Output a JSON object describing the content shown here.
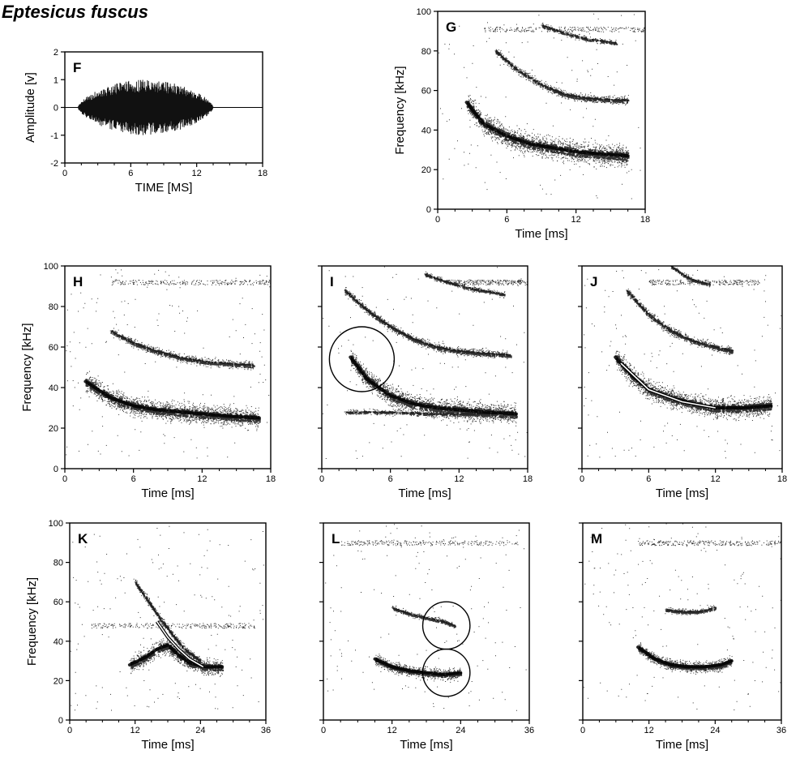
{
  "figure": {
    "title": "Eptesicus fuscus"
  },
  "panels": [
    {
      "id": "F",
      "label": "F",
      "kind": "waveform",
      "xlabel": "TIME [MS]",
      "ylabel": "Amplitude [v]",
      "x_ticks": [
        "0",
        "6",
        "12",
        "18"
      ],
      "y_ticks": [
        "2",
        "1",
        "0",
        "-1",
        "-2"
      ],
      "xlim": [
        0,
        18
      ],
      "ylim": [
        -2,
        2
      ],
      "envelope": {
        "start": 1.2,
        "end": 13.5,
        "peak_amplitude": 1.0
      }
    },
    {
      "id": "G",
      "label": "G",
      "kind": "spectrogram",
      "xlabel": "Time [ms]",
      "ylabel": "Frequency [kHz]",
      "x_ticks": [
        "0",
        "6",
        "12",
        "18"
      ],
      "y_ticks": [
        "100",
        "80",
        "60",
        "40",
        "20",
        "0"
      ],
      "xlim": [
        0,
        18
      ],
      "ylim": [
        0,
        100
      ],
      "traces": [
        {
          "name": "fundamental",
          "x": [
            2.5,
            4,
            6,
            8,
            10,
            12,
            14,
            16.5
          ],
          "y": [
            54,
            43,
            37,
            33,
            31,
            29,
            28,
            27
          ],
          "spread": 8,
          "density": 0.9
        },
        {
          "name": "harmonic2",
          "x": [
            5,
            7,
            9,
            11,
            13,
            16.5
          ],
          "y": [
            80,
            70,
            63,
            58,
            56,
            55
          ],
          "spread": 3,
          "density": 0.45
        },
        {
          "name": "harmonic3",
          "x": [
            9,
            11,
            13,
            15.5
          ],
          "y": [
            93,
            89,
            86,
            84
          ],
          "spread": 2,
          "density": 0.3
        }
      ],
      "noise_band": {
        "y": 91,
        "x_range": [
          4,
          18
        ]
      },
      "circles": []
    },
    {
      "id": "H",
      "label": "H",
      "kind": "spectrogram",
      "xlabel": "Time [ms]",
      "ylabel": "Frequency [kHz]",
      "x_ticks": [
        "0",
        "6",
        "12",
        "18"
      ],
      "y_ticks": [
        "100",
        "80",
        "60",
        "40",
        "20",
        "0"
      ],
      "xlim": [
        0,
        18
      ],
      "ylim": [
        0,
        100
      ],
      "traces": [
        {
          "name": "fundamental",
          "x": [
            1.8,
            4,
            6,
            8,
            10,
            12,
            14,
            17
          ],
          "y": [
            43,
            35,
            31,
            29,
            28,
            27,
            26,
            25
          ],
          "spread": 7,
          "density": 0.9
        },
        {
          "name": "harmonic2",
          "x": [
            4,
            6,
            8,
            10,
            12,
            14,
            16.5
          ],
          "y": [
            68,
            62,
            58,
            55,
            53,
            52,
            51
          ],
          "spread": 3,
          "density": 0.45
        }
      ],
      "noise_band": {
        "y": 92,
        "x_range": [
          4,
          18
        ]
      },
      "circles": []
    },
    {
      "id": "I",
      "label": "I",
      "kind": "spectrogram",
      "xlabel": "Time [ms]",
      "ylabel": "",
      "x_ticks": [
        "0",
        "6",
        "12",
        "18"
      ],
      "y_ticks": [],
      "xlim": [
        0,
        18
      ],
      "ylim": [
        0,
        100
      ],
      "traces": [
        {
          "name": "fundamental",
          "x": [
            2.5,
            4,
            6,
            8,
            10,
            12,
            14,
            17
          ],
          "y": [
            55,
            44,
            36,
            32,
            30,
            29,
            28,
            27
          ],
          "spread": 7,
          "density": 0.9
        },
        {
          "name": "harmonic2",
          "x": [
            2,
            4,
            6,
            8,
            10,
            12,
            14,
            16.5
          ],
          "y": [
            88,
            78,
            70,
            64,
            60,
            58,
            57,
            56
          ],
          "spread": 3,
          "density": 0.5
        },
        {
          "name": "harmonic3",
          "x": [
            9,
            11,
            13,
            16
          ],
          "y": [
            96,
            92,
            89,
            86
          ],
          "spread": 2,
          "density": 0.3
        },
        {
          "name": "echo_band",
          "x": [
            2,
            6,
            10,
            15
          ],
          "y": [
            28,
            28,
            27,
            27
          ],
          "spread": 2,
          "density": 0.25
        }
      ],
      "noise_band": {
        "y": 92,
        "x_range": [
          11,
          18
        ]
      },
      "circles": [
        {
          "cx": 3.5,
          "cy": 54,
          "r_kHz": 16
        }
      ]
    },
    {
      "id": "J",
      "label": "J",
      "kind": "spectrogram",
      "xlabel": "Time [ms]",
      "ylabel": "",
      "x_ticks": [
        "0",
        "6",
        "12",
        "18"
      ],
      "y_ticks": [],
      "xlim": [
        0,
        18
      ],
      "ylim": [
        0,
        100
      ],
      "traces": [
        {
          "name": "fundamental",
          "x": [
            3,
            4.5,
            6,
            8,
            10,
            12,
            14.5,
            17
          ],
          "y": [
            55,
            46,
            39,
            35,
            32,
            30,
            30,
            31
          ],
          "spread": 7,
          "density": 0.9
        },
        {
          "name": "harmonic2",
          "x": [
            4,
            6,
            8,
            10,
            12,
            13.5
          ],
          "y": [
            88,
            76,
            68,
            63,
            60,
            58
          ],
          "spread": 3,
          "density": 0.5
        },
        {
          "name": "harmonic3",
          "x": [
            8,
            9,
            10,
            11.5
          ],
          "y": [
            100,
            96,
            93,
            91
          ],
          "spread": 2,
          "density": 0.35
        }
      ],
      "noise_band": {
        "y": 92,
        "x_range": [
          6,
          16
        ]
      },
      "circles": [],
      "overlay_line": {
        "x": [
          3.5,
          6,
          9,
          12
        ],
        "y": [
          52,
          39,
          33,
          30
        ]
      }
    },
    {
      "id": "K",
      "label": "K",
      "kind": "spectrogram",
      "xlabel": "Time [ms]",
      "ylabel": "Frequency [kHz]",
      "x_ticks": [
        "0",
        "12",
        "24",
        "36"
      ],
      "y_ticks": [
        "100",
        "80",
        "60",
        "40",
        "20",
        "0"
      ],
      "xlim": [
        0,
        36
      ],
      "ylim": [
        0,
        100
      ],
      "traces": [
        {
          "name": "fundamental",
          "x": [
            11,
            14,
            16,
            18,
            20,
            22,
            25,
            28
          ],
          "y": [
            28,
            32,
            36,
            38,
            33,
            29,
            27,
            27
          ],
          "spread": 6,
          "density": 0.8
        },
        {
          "name": "downsweep",
          "x": [
            12,
            15,
            17,
            19,
            21,
            24
          ],
          "y": [
            70,
            58,
            50,
            43,
            36,
            30
          ],
          "spread": 3,
          "density": 0.5
        }
      ],
      "noise_band": {
        "y": 48,
        "x_range": [
          4,
          34
        ]
      },
      "circles": [],
      "overlay_line": {
        "x": [
          16,
          18,
          20,
          22,
          24.5
        ],
        "y": [
          50,
          42,
          36,
          31,
          27
        ]
      }
    },
    {
      "id": "L",
      "label": "L",
      "kind": "spectrogram",
      "xlabel": "Time [ms]",
      "ylabel": "",
      "x_ticks": [
        "0",
        "12",
        "24",
        "36"
      ],
      "y_ticks": [],
      "xlim": [
        0,
        36
      ],
      "ylim": [
        0,
        100
      ],
      "traces": [
        {
          "name": "fundamental",
          "x": [
            9,
            12,
            15,
            18,
            21,
            24
          ],
          "y": [
            31,
            27,
            25,
            24,
            23,
            24
          ],
          "spread": 4,
          "density": 0.8
        },
        {
          "name": "harmonic2",
          "x": [
            12,
            15,
            18,
            21,
            23
          ],
          "y": [
            57,
            54,
            52,
            50,
            48
          ],
          "spread": 2,
          "density": 0.4
        }
      ],
      "noise_band": {
        "y": 90,
        "x_range": [
          3,
          34
        ]
      },
      "circles": [
        {
          "cx": 21.5,
          "cy": 48,
          "r_kHz": 12
        },
        {
          "cx": 21.5,
          "cy": 24,
          "r_kHz": 12
        }
      ]
    },
    {
      "id": "M",
      "label": "M",
      "kind": "spectrogram",
      "xlabel": "Time [ms]",
      "ylabel": "",
      "x_ticks": [
        "0",
        "12",
        "24",
        "36"
      ],
      "y_ticks": [],
      "xlim": [
        0,
        36
      ],
      "ylim": [
        0,
        100
      ],
      "traces": [
        {
          "name": "fundamental",
          "x": [
            10,
            13,
            16,
            19,
            22,
            25,
            27
          ],
          "y": [
            37,
            31,
            28,
            27,
            27,
            28,
            30
          ],
          "spread": 4,
          "density": 0.85
        },
        {
          "name": "harmonic2",
          "x": [
            15,
            18,
            21,
            24
          ],
          "y": [
            56,
            55,
            55,
            57
          ],
          "spread": 2,
          "density": 0.45
        }
      ],
      "noise_band": {
        "y": 90,
        "x_range": [
          10,
          36
        ]
      },
      "circles": []
    }
  ]
}
